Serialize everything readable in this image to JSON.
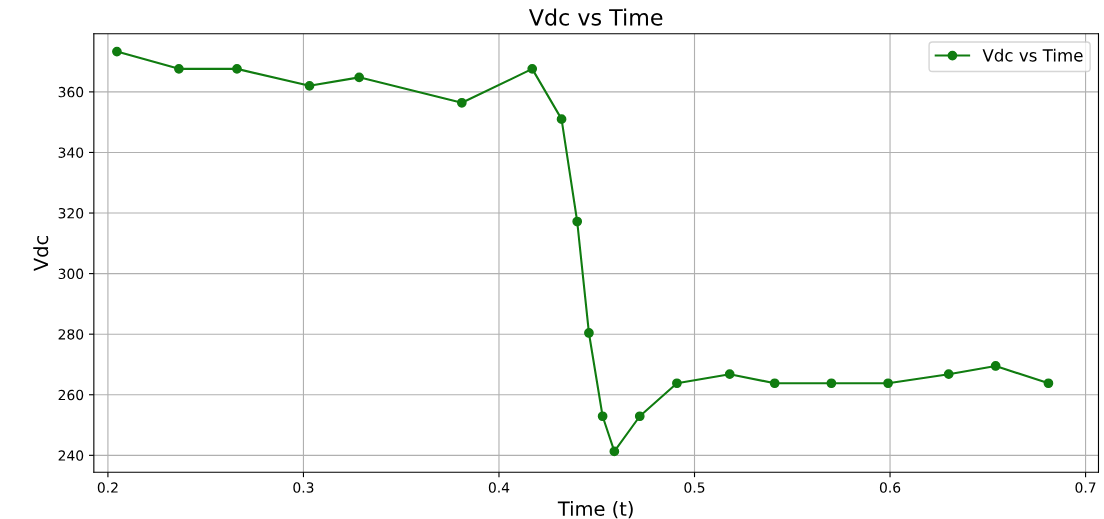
{
  "chart_data": {
    "type": "line",
    "title": "Vdc vs Time",
    "xlabel": "Time (t)",
    "ylabel": "Vdc",
    "x": [
      0.2046,
      0.2363,
      0.266,
      0.3031,
      0.3285,
      0.381,
      0.417,
      0.432,
      0.44,
      0.446,
      0.453,
      0.459,
      0.472,
      0.491,
      0.518,
      0.541,
      0.57,
      0.599,
      0.63,
      0.654,
      0.681
    ],
    "series": [
      {
        "name": "Vdc vs Time",
        "color": "#107c10",
        "values": [
          373.3,
          367.6,
          367.6,
          362.0,
          364.8,
          356.4,
          367.6,
          351.0,
          317.2,
          280.4,
          252.9,
          241.3,
          252.9,
          263.8,
          266.8,
          263.8,
          263.8,
          263.8,
          266.8,
          269.5,
          263.8
        ]
      }
    ],
    "xlim": [
      0.1928,
      0.7066
    ],
    "ylim": [
      234.4,
      379.2
    ],
    "xticks": [
      0.2,
      0.3,
      0.4,
      0.5,
      0.6,
      0.7
    ],
    "yticks": [
      240,
      260,
      280,
      300,
      320,
      340,
      360
    ],
    "grid": true,
    "legend": "top right",
    "marker": "circle",
    "line_style": "solid"
  }
}
